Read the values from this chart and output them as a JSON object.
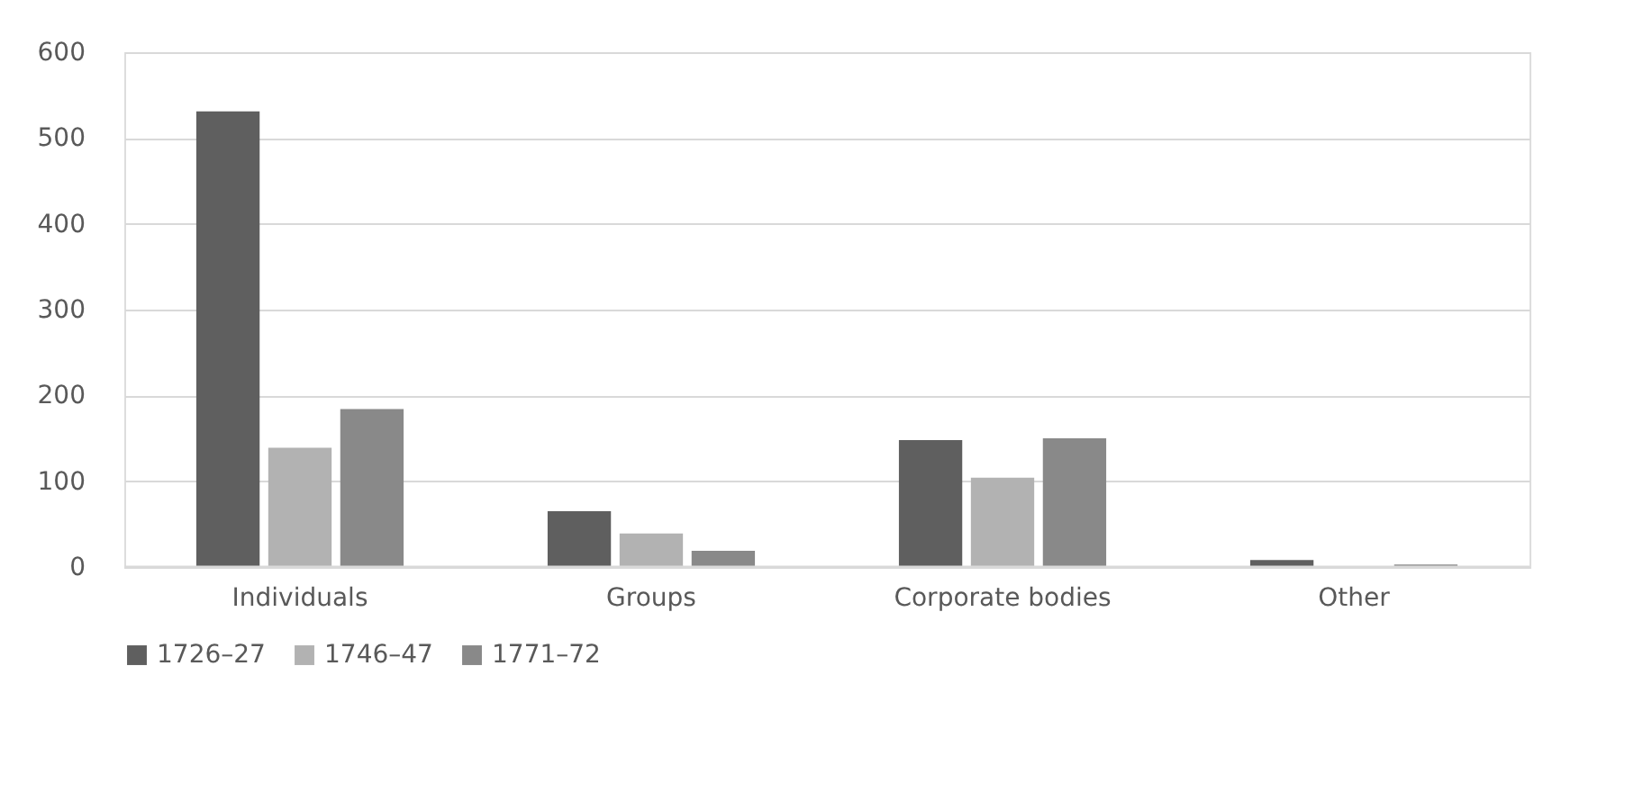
{
  "chart_data": {
    "type": "bar",
    "categories": [
      "Individuals",
      "Groups",
      "Corporate bodies",
      "Other"
    ],
    "series": [
      {
        "name": "1726–27",
        "color": "#5f5f5f",
        "values": [
          531,
          65,
          148,
          8
        ]
      },
      {
        "name": "1746–47",
        "color": "#b2b2b2",
        "values": [
          139,
          39,
          104,
          0
        ]
      },
      {
        "name": "1771–72",
        "color": "#898989",
        "values": [
          184,
          19,
          150,
          3
        ]
      }
    ],
    "ylim": [
      0,
      600
    ],
    "yticks": [
      0,
      100,
      200,
      300,
      400,
      500,
      600
    ],
    "grid": "y",
    "legend": "bottom"
  }
}
